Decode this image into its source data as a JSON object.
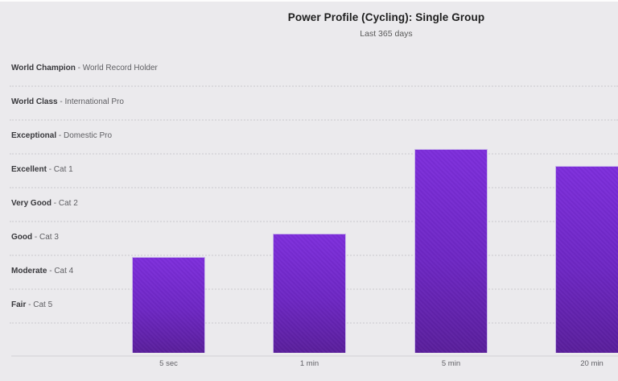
{
  "header": {
    "title": "Power Profile (Cycling): Single Group",
    "subtitle": "Last 365 days"
  },
  "y_axis": {
    "separator": " - ",
    "zones": [
      {
        "grade": "World Champion",
        "detail": "World Record Holder"
      },
      {
        "grade": "World Class",
        "detail": "International Pro"
      },
      {
        "grade": "Exceptional",
        "detail": "Domestic Pro"
      },
      {
        "grade": "Excellent",
        "detail": "Cat 1"
      },
      {
        "grade": "Very Good",
        "detail": "Cat 2"
      },
      {
        "grade": "Good",
        "detail": "Cat 3"
      },
      {
        "grade": "Moderate",
        "detail": "Cat 4"
      },
      {
        "grade": "Fair",
        "detail": "Cat 5"
      }
    ]
  },
  "chart_data": {
    "type": "bar",
    "title": "Power Profile (Cycling): Single Group",
    "subtitle": "Last 365 days",
    "categories": [
      "5 sec",
      "1 min",
      "5 min",
      "20 min"
    ],
    "values": [
      2.9,
      3.6,
      6.1,
      5.6
    ],
    "value_scale": "zone index: 0 = chart bottom, each whole unit = one zone band, 9 = top of World Champion band",
    "ratings_reached": [
      "Moderate - Cat 4",
      "Good - Cat 3",
      "Exceptional - Domestic Pro",
      "Excellent - Cat 1"
    ],
    "ylim": [
      0,
      9
    ],
    "xlabel": "",
    "ylabel": "",
    "grid": "horizontal dotted lines between zone bands",
    "legend": "none",
    "y_zone_labels_top_to_bottom": [
      "World Champion - World Record Holder",
      "World Class - International Pro",
      "Exceptional - Domestic Pro",
      "Excellent - Cat 1",
      "Very Good - Cat 2",
      "Good - Cat 3",
      "Moderate - Cat 4",
      "Fair - Cat 5"
    ]
  },
  "colors": {
    "background": "#EBEAED",
    "bar_gradient_top": "#7E2EDC",
    "bar_gradient_bottom": "#5A1F9C",
    "bar_border": "#C9B7E9",
    "gridline": "#D9D8DC",
    "axis_line": "#DEDDE1",
    "title_text": "#1E1E1E",
    "subtitle_text": "#5A5A5A",
    "zone_grade_text": "#38383C",
    "zone_detail_text": "#5F5F63",
    "tick_label_text": "#606065"
  }
}
